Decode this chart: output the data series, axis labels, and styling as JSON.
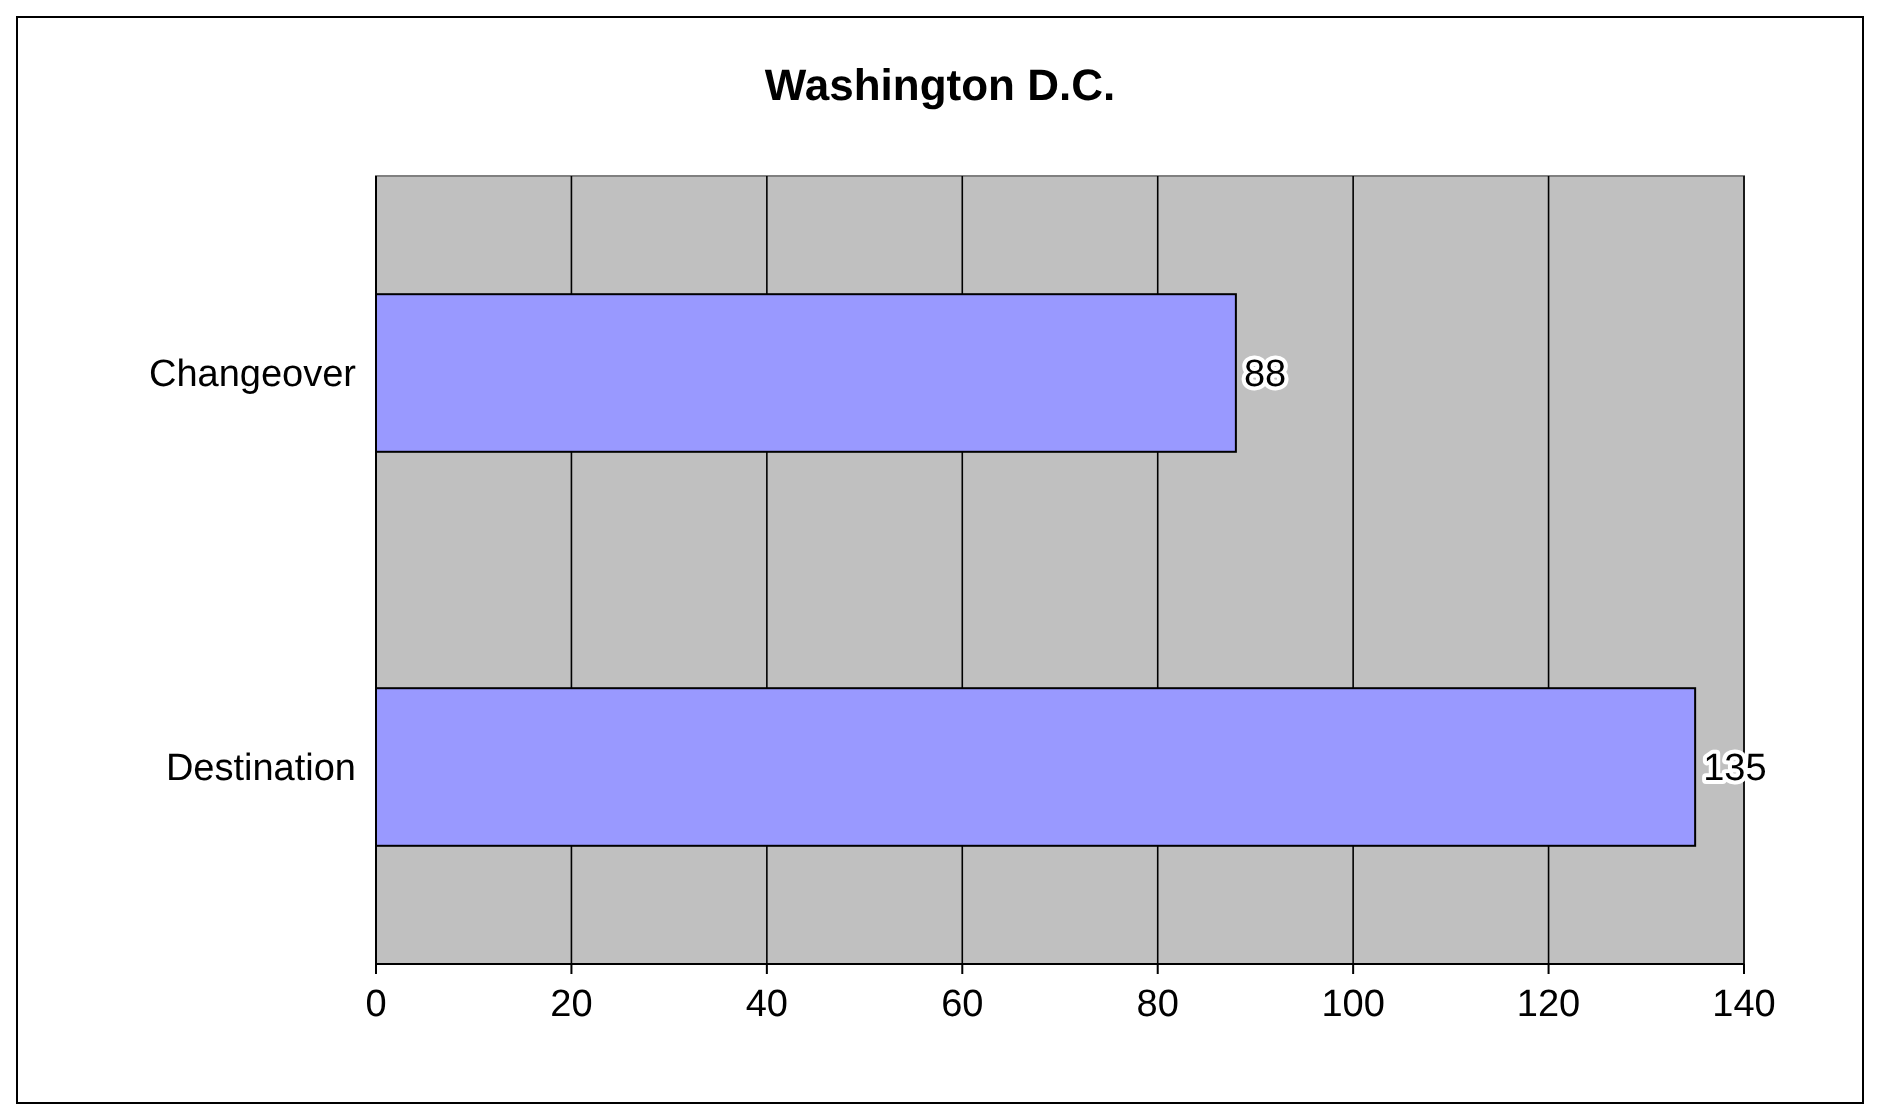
{
  "chart_data": {
    "type": "bar",
    "title": "Washington D.C.",
    "orientation": "horizontal",
    "categories": [
      "Changeover",
      "Destination"
    ],
    "values": [
      88,
      135
    ],
    "color": "#9999ff",
    "xlim": [
      0,
      140
    ],
    "xticks": [
      0,
      20,
      40,
      60,
      80,
      100,
      120,
      140
    ],
    "grid": "x",
    "data_labels": true
  }
}
